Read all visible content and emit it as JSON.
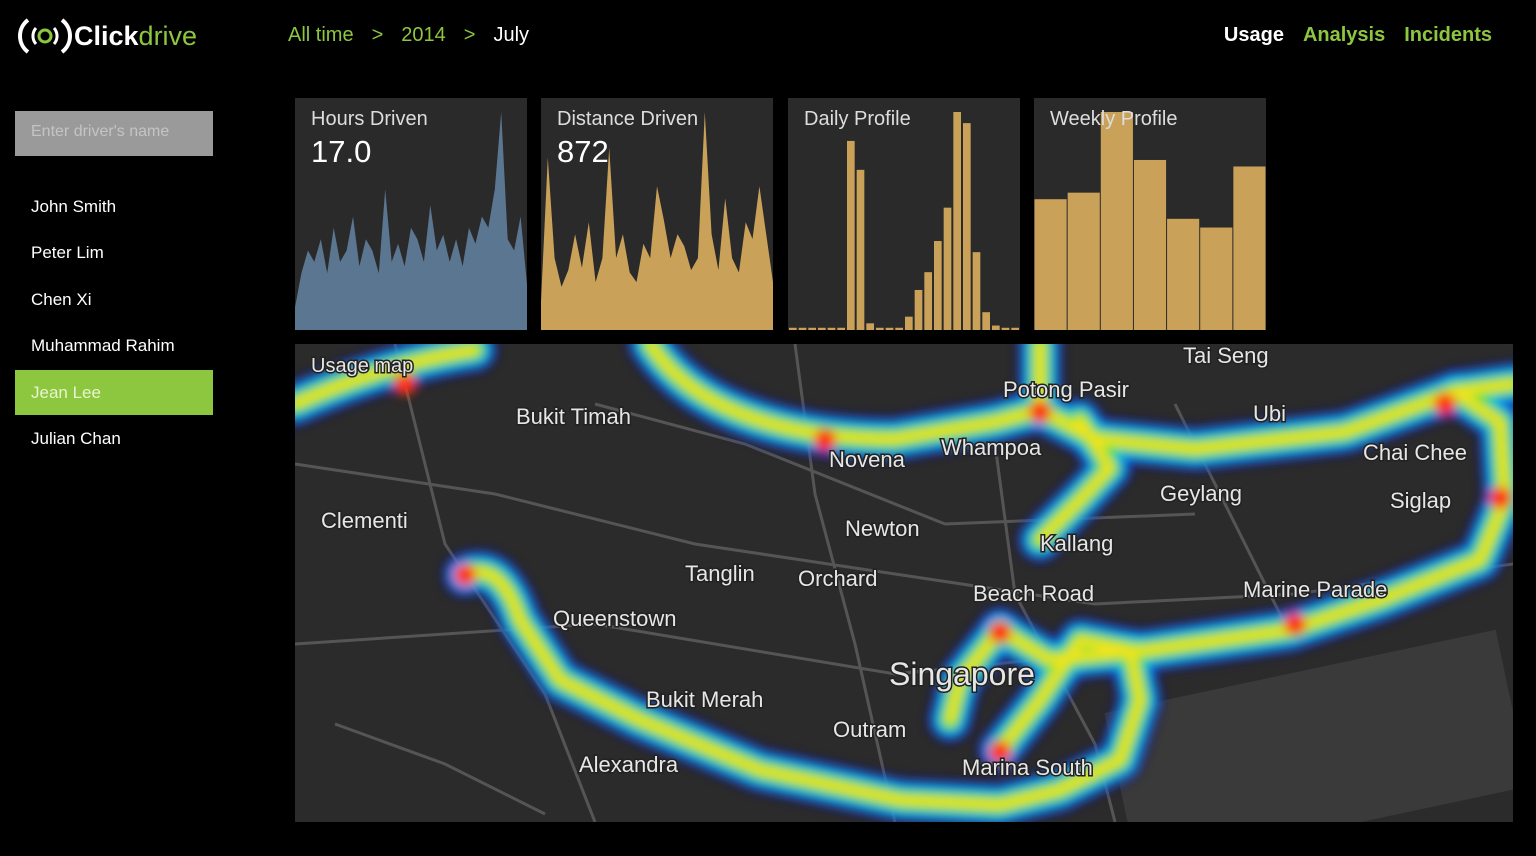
{
  "header": {
    "logo": {
      "click": "Click",
      "drive": "drive"
    },
    "breadcrumb": {
      "items": [
        "All time",
        "2014",
        "July"
      ],
      "separator": ">"
    },
    "nav": [
      "Usage",
      "Analysis",
      "Incidents"
    ]
  },
  "sidebar": {
    "search_placeholder": "Enter driver's name",
    "drivers": [
      "John Smith",
      "Peter Lim",
      "Chen Xi",
      "Muhammad Rahim",
      "Jean Lee",
      "Julian Chan"
    ],
    "selected": 4
  },
  "panels": [
    {
      "title": "Hours Driven",
      "value": "17.0",
      "type": "area",
      "color": "#5b7690",
      "values": [
        10,
        25,
        35,
        30,
        40,
        25,
        45,
        30,
        35,
        50,
        28,
        40,
        35,
        25,
        62,
        30,
        38,
        28,
        45,
        40,
        30,
        55,
        35,
        42,
        30,
        40,
        28,
        45,
        38,
        50,
        45,
        62,
        96,
        40,
        35,
        50,
        20
      ]
    },
    {
      "title": "Distance Driven",
      "value": 872,
      "type": "area",
      "color": "#c9a159",
      "values": [
        12,
        72,
        30,
        18,
        25,
        40,
        26,
        45,
        20,
        30,
        76,
        30,
        40,
        24,
        20,
        36,
        30,
        60,
        46,
        30,
        40,
        35,
        25,
        30,
        91,
        40,
        25,
        55,
        30,
        24,
        45,
        38,
        60,
        40,
        20
      ]
    },
    {
      "title": "Daily Profile",
      "type": "bar",
      "color": "#c9a159",
      "values": [
        1,
        1,
        1,
        1,
        1,
        1,
        85,
        72,
        3,
        1,
        1,
        1,
        6,
        18,
        26,
        40,
        55,
        98,
        93,
        35,
        8,
        2,
        1,
        1
      ]
    },
    {
      "title": "Weekly Profile",
      "type": "bar",
      "color": "#c9a159",
      "values": [
        60,
        63,
        100,
        78,
        51,
        47,
        75
      ]
    }
  ],
  "map": {
    "title": "Usage map",
    "labels": [
      "Bukit Timah",
      "Tai Seng",
      "Potong Pasir",
      "Ubi",
      "Whampoa",
      "Novena",
      "Chai Chee",
      "Geylang",
      "Siglap",
      "Clementi",
      "Newton",
      "Kallang",
      "Tanglin",
      "Orchard",
      "Beach Road",
      "Marine Parade",
      "Queenstown",
      "Singapore",
      "Bukit Merah",
      "Outram",
      "Alexandra",
      "Marina South"
    ]
  }
}
